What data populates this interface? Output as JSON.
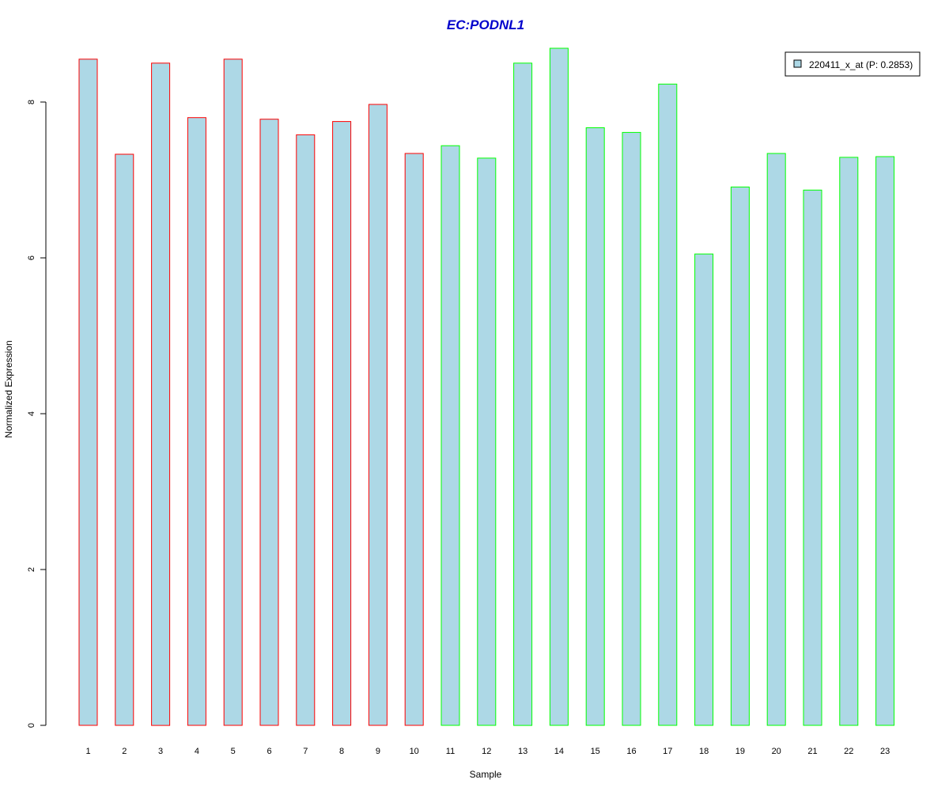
{
  "chart_data": {
    "type": "bar",
    "title": "EC:PODNL1",
    "xlabel": "Sample",
    "ylabel": "Normalized Expression",
    "categories": [
      "1",
      "2",
      "3",
      "4",
      "5",
      "6",
      "7",
      "8",
      "9",
      "10",
      "11",
      "12",
      "13",
      "14",
      "15",
      "16",
      "17",
      "18",
      "19",
      "20",
      "21",
      "22",
      "23"
    ],
    "series": [
      {
        "name": "220411_x_at (P: 0.2853)",
        "values": [
          8.55,
          7.33,
          8.5,
          7.8,
          8.55,
          7.78,
          7.58,
          7.75,
          7.97,
          7.34,
          7.44,
          7.28,
          8.5,
          8.69,
          7.67,
          7.61,
          8.23,
          6.05,
          6.91,
          7.34,
          6.87,
          7.29,
          7.3
        ]
      }
    ],
    "group_border_colors": [
      "#ff0000",
      "#ff0000",
      "#ff0000",
      "#ff0000",
      "#ff0000",
      "#ff0000",
      "#ff0000",
      "#ff0000",
      "#ff0000",
      "#ff0000",
      "#00ff00",
      "#00ff00",
      "#00ff00",
      "#00ff00",
      "#00ff00",
      "#00ff00",
      "#00ff00",
      "#00ff00",
      "#00ff00",
      "#00ff00",
      "#00ff00",
      "#00ff00",
      "#00ff00"
    ],
    "fill_color": "#add8e6",
    "title_color": "#0000cc",
    "ylim": [
      0,
      8.7
    ],
    "yticks": [
      0,
      2,
      4,
      6,
      8
    ],
    "legend_position": "top-right",
    "grid": false
  }
}
